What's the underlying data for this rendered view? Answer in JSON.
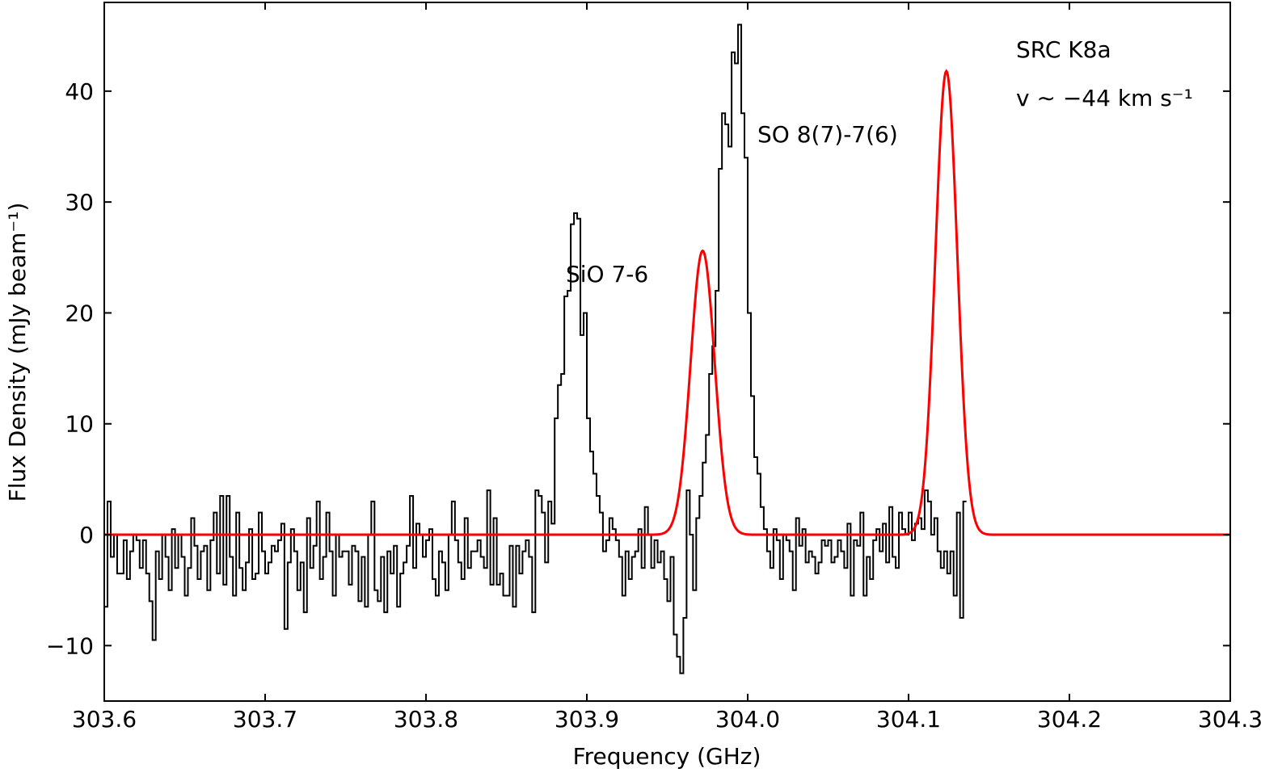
{
  "chart_data": {
    "type": "line",
    "title": "",
    "xlabel": "Frequency (GHz)",
    "ylabel": "Flux Density (mJy beam⁻¹)",
    "xlim": [
      303.6,
      304.3
    ],
    "ylim": [
      -15.0,
      48.0
    ],
    "xticks": [
      303.6,
      303.7,
      303.8,
      303.9,
      304.0,
      304.1,
      304.2,
      304.3
    ],
    "xtick_labels": [
      "303.6",
      "303.7",
      "303.8",
      "303.9",
      "304.0",
      "304.1",
      "304.2",
      "304.3"
    ],
    "yticks": [
      -10,
      0,
      10,
      20,
      30,
      40
    ],
    "ytick_labels": [
      "−10",
      "0",
      "10",
      "20",
      "30",
      "40"
    ],
    "grid": false,
    "legend": "none",
    "annotations": [
      {
        "text": "SiO 7-6",
        "x": 303.92,
        "y": 24.5
      },
      {
        "text": "SO 8(7)-7(6)",
        "x": 304.05,
        "y": 36.3
      },
      {
        "text": "SRC K8a",
        "x": 304.17,
        "y": 44.0
      },
      {
        "text": "v ∼ −44 km s⁻¹",
        "x": 304.17,
        "y": 39.7
      }
    ],
    "colors": {
      "spectrum": "#000000",
      "fit": "#ff0000"
    },
    "series": [
      {
        "style": "step",
        "x_start": 303.6,
        "x_step": 0.002,
        "values": [
          -6.5,
          3.0,
          -2.0,
          0.0,
          -3.5,
          -3.5,
          -0.5,
          -4.0,
          -1.5,
          0.0,
          -0.5,
          -3.0,
          -0.5,
          -3.5,
          -6.0,
          -9.5,
          -1.5,
          -4.0,
          0.0,
          -2.0,
          -5.0,
          0.5,
          -3.0,
          0.0,
          -2.0,
          -5.5,
          -3.0,
          1.5,
          -1.0,
          -4.0,
          -1.5,
          -1.0,
          -5.0,
          -0.5,
          2.0,
          -3.5,
          3.5,
          -4.5,
          3.5,
          -2.0,
          -5.5,
          2.0,
          -3.0,
          -5.0,
          -2.5,
          0.5,
          -4.0,
          -3.5,
          2.0,
          -1.5,
          -3.5,
          -2.5,
          -1.0,
          -1.5,
          -0.5,
          1.0,
          -8.5,
          -2.5,
          0.5,
          -1.5,
          -5.0,
          -2.5,
          -7.0,
          1.5,
          -3.0,
          -1.0,
          3.0,
          -4.0,
          -2.0,
          2.0,
          -1.5,
          -5.5,
          0.0,
          -2.0,
          -1.5,
          -1.5,
          -4.5,
          -1.0,
          -1.5,
          -6.0,
          -2.0,
          -6.5,
          0.0,
          3.0,
          -5.0,
          -6.0,
          -2.0,
          -7.0,
          -1.5,
          -3.5,
          -1.0,
          -6.5,
          -3.5,
          -2.5,
          -1.0,
          3.5,
          -3.0,
          1.0,
          0.0,
          -2.0,
          -0.5,
          0.5,
          -4.0,
          -5.5,
          -1.5,
          -2.5,
          -5.0,
          0.0,
          3.0,
          -0.5,
          -2.5,
          -4.0,
          1.5,
          -3.0,
          -1.5,
          -1.5,
          -0.5,
          -2.0,
          -3.0,
          4.0,
          -4.5,
          1.5,
          -4.5,
          -3.5,
          -5.5,
          -5.5,
          -1.0,
          -6.5,
          -1.0,
          -3.5,
          -1.5,
          -0.5,
          -2.0,
          -7.0,
          4.0,
          3.5,
          2.0,
          -2.5,
          3.0,
          1.0,
          10.5,
          13.5,
          14.5,
          21.5,
          22.0,
          28.0,
          29.0,
          28.5,
          18.0,
          20.0,
          10.5,
          7.5,
          5.5,
          3.5,
          2.0,
          -1.5,
          -0.5,
          1.5,
          0.5,
          -0.5,
          -2.0,
          -5.5,
          -1.5,
          -4.0,
          -2.0,
          -1.5,
          0.5,
          -3.0,
          2.5,
          0.0,
          -3.0,
          -0.5,
          -2.5,
          -1.5,
          -4.0,
          -6.0,
          -2.0,
          -9.0,
          -11.0,
          -12.5,
          -7.5,
          4.0,
          0.0,
          -5.0,
          1.5,
          3.5,
          6.5,
          9.0,
          14.5,
          17.0,
          22.0,
          33.0,
          38.0,
          37.0,
          35.0,
          43.5,
          42.5,
          46.0,
          38.0,
          34.0,
          20.0,
          12.5,
          7.0,
          5.5,
          2.5,
          0.5,
          -1.5,
          -3.0,
          0.5,
          -0.5,
          -4.0,
          0.0,
          -0.5,
          -1.5,
          -5.0,
          1.5,
          -1.0,
          0.5,
          -2.5,
          -1.5,
          -2.0,
          -3.5,
          -2.5,
          -0.5,
          -1.0,
          -0.5,
          -2.5,
          -2.0,
          -0.5,
          -1.5,
          -3.0,
          1.0,
          -5.5,
          -0.5,
          -1.0,
          2.0,
          -5.5,
          -2.0,
          -4.0,
          -0.5,
          0.5,
          -1.5,
          1.0,
          -2.5,
          2.5,
          -2.0,
          -3.0,
          2.0,
          0.5,
          0.0,
          2.0,
          -0.5,
          1.0,
          1.5,
          0.5,
          4.0,
          3.0,
          0.0,
          1.5,
          -1.5,
          -3.0,
          -1.5,
          -3.5,
          -1.5,
          -5.5,
          2.0,
          -7.5,
          3.0
        ]
      },
      {
        "style": "line",
        "model": "gaussian",
        "components": [
          {
            "center": 303.972,
            "amplitude": 25.6,
            "sigma": 0.0075
          },
          {
            "center": 304.1235,
            "amplitude": 41.8,
            "sigma": 0.0068
          }
        ]
      }
    ]
  }
}
